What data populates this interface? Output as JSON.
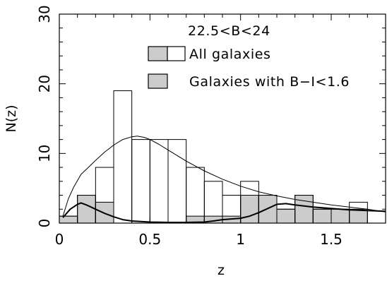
{
  "chart_data": {
    "type": "bar",
    "xlabel": "z",
    "ylabel": "N(z)",
    "xlim": [
      0,
      1.8
    ],
    "ylim": [
      0,
      30
    ],
    "x_ticks": [
      0,
      0.5,
      1,
      1.5
    ],
    "x_tick_labels": [
      "0",
      "0.5",
      "1",
      "1.5"
    ],
    "y_ticks": [
      0,
      10,
      20,
      30
    ],
    "y_tick_labels": [
      "0",
      "10",
      "20",
      "30"
    ],
    "annotation": "22.5<B<24",
    "bin_edges": [
      0.0,
      0.1,
      0.2,
      0.3,
      0.4,
      0.5,
      0.6,
      0.7,
      0.8,
      0.9,
      1.0,
      1.1,
      1.2,
      1.3,
      1.4,
      1.5,
      1.6,
      1.7
    ],
    "series": [
      {
        "name": "All galaxies",
        "kind": "histogram",
        "fill": "none",
        "values": [
          1,
          4,
          8,
          19,
          12,
          12,
          12,
          8,
          6,
          4,
          6,
          4,
          2,
          4,
          2,
          2,
          3
        ]
      },
      {
        "name": "Galaxies with B−I<1.6",
        "kind": "histogram",
        "fill": "#cccccc",
        "values": [
          1,
          4,
          3,
          0,
          0,
          0,
          0,
          1,
          1,
          1,
          4,
          4,
          2,
          4,
          2,
          2,
          2
        ]
      },
      {
        "kind": "curve",
        "stroke_width": 1,
        "x": [
          0.02,
          0.05,
          0.08,
          0.12,
          0.16,
          0.2,
          0.25,
          0.3,
          0.35,
          0.4,
          0.43,
          0.47,
          0.5,
          0.55,
          0.6,
          0.65,
          0.7,
          0.8,
          0.9,
          1.0,
          1.1,
          1.2,
          1.3,
          1.4,
          1.5,
          1.6,
          1.7,
          1.8
        ],
        "y": [
          1.0,
          3.5,
          5.2,
          7.0,
          8.0,
          9.0,
          10.2,
          11.2,
          12.0,
          12.4,
          12.5,
          12.3,
          12.0,
          11.3,
          10.5,
          9.7,
          8.9,
          7.5,
          6.3,
          5.3,
          4.5,
          3.9,
          3.4,
          3.0,
          2.6,
          2.3,
          2.0,
          1.6
        ]
      },
      {
        "kind": "curve",
        "stroke_width": 2,
        "x": [
          0.02,
          0.06,
          0.1,
          0.12,
          0.15,
          0.2,
          0.25,
          0.3,
          0.35,
          0.4,
          0.5,
          0.6,
          0.7,
          0.8,
          0.85,
          0.9,
          0.95,
          1.0,
          1.05,
          1.1,
          1.15,
          1.2,
          1.25,
          1.3,
          1.4,
          1.5,
          1.6,
          1.7,
          1.8
        ],
        "y": [
          0.8,
          2.0,
          2.7,
          2.9,
          2.6,
          2.0,
          1.4,
          0.9,
          0.5,
          0.3,
          0.15,
          0.1,
          0.1,
          0.15,
          0.3,
          0.5,
          0.6,
          0.7,
          1.0,
          1.5,
          2.1,
          2.7,
          2.8,
          2.6,
          2.3,
          2.1,
          1.9,
          1.8,
          1.7
        ]
      }
    ],
    "legend": {
      "placement": "top-right",
      "entries": [
        {
          "label": "All galaxies",
          "swatch": "split",
          "fill": "#cccccc"
        },
        {
          "label": "Galaxies with B−I<1.6",
          "swatch": "filled",
          "fill": "#cccccc"
        }
      ]
    }
  }
}
